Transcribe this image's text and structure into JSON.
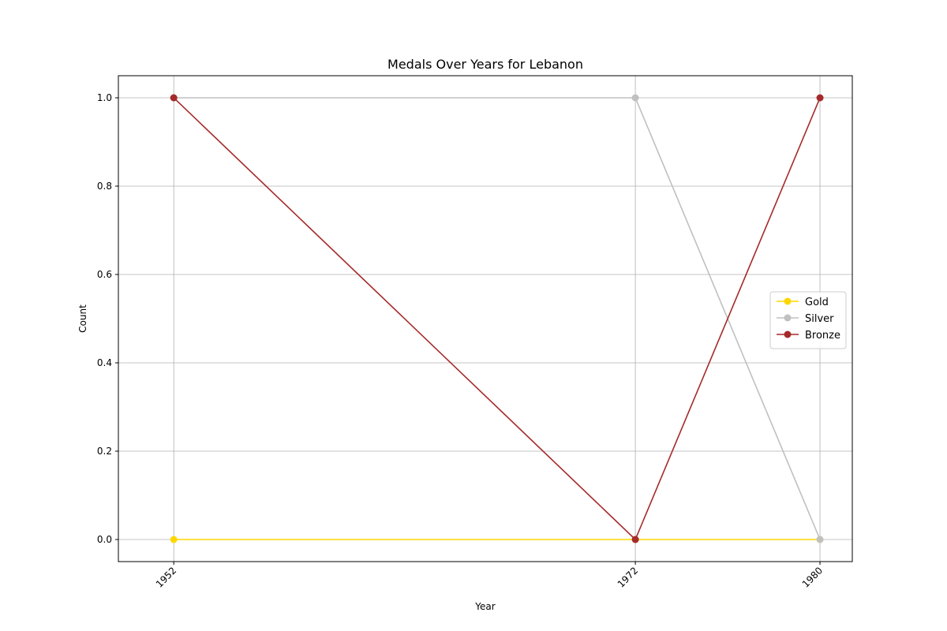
{
  "chart_data": {
    "type": "line",
    "title": "Medals Over Years for Lebanon",
    "xlabel": "Year",
    "ylabel": "Count",
    "x": [
      1952,
      1972,
      1980
    ],
    "x_tick_labels": [
      "1952",
      "1972",
      "1980"
    ],
    "y_ticks": [
      0.0,
      0.2,
      0.4,
      0.6,
      0.8,
      1.0
    ],
    "y_tick_labels": [
      "0.0",
      "0.2",
      "0.4",
      "0.6",
      "0.8",
      "1.0"
    ],
    "xlim": [
      1949.6,
      1981.4
    ],
    "ylim": [
      -0.05,
      1.05
    ],
    "grid": true,
    "legend_position": "center-right",
    "series": [
      {
        "name": "Gold",
        "values": [
          0,
          0,
          0
        ],
        "color": "#FFD700"
      },
      {
        "name": "Silver",
        "values": [
          1,
          1,
          0
        ],
        "color": "#C0C0C0"
      },
      {
        "name": "Bronze",
        "values": [
          1,
          0,
          1
        ],
        "color": "#A52A2A"
      }
    ]
  }
}
